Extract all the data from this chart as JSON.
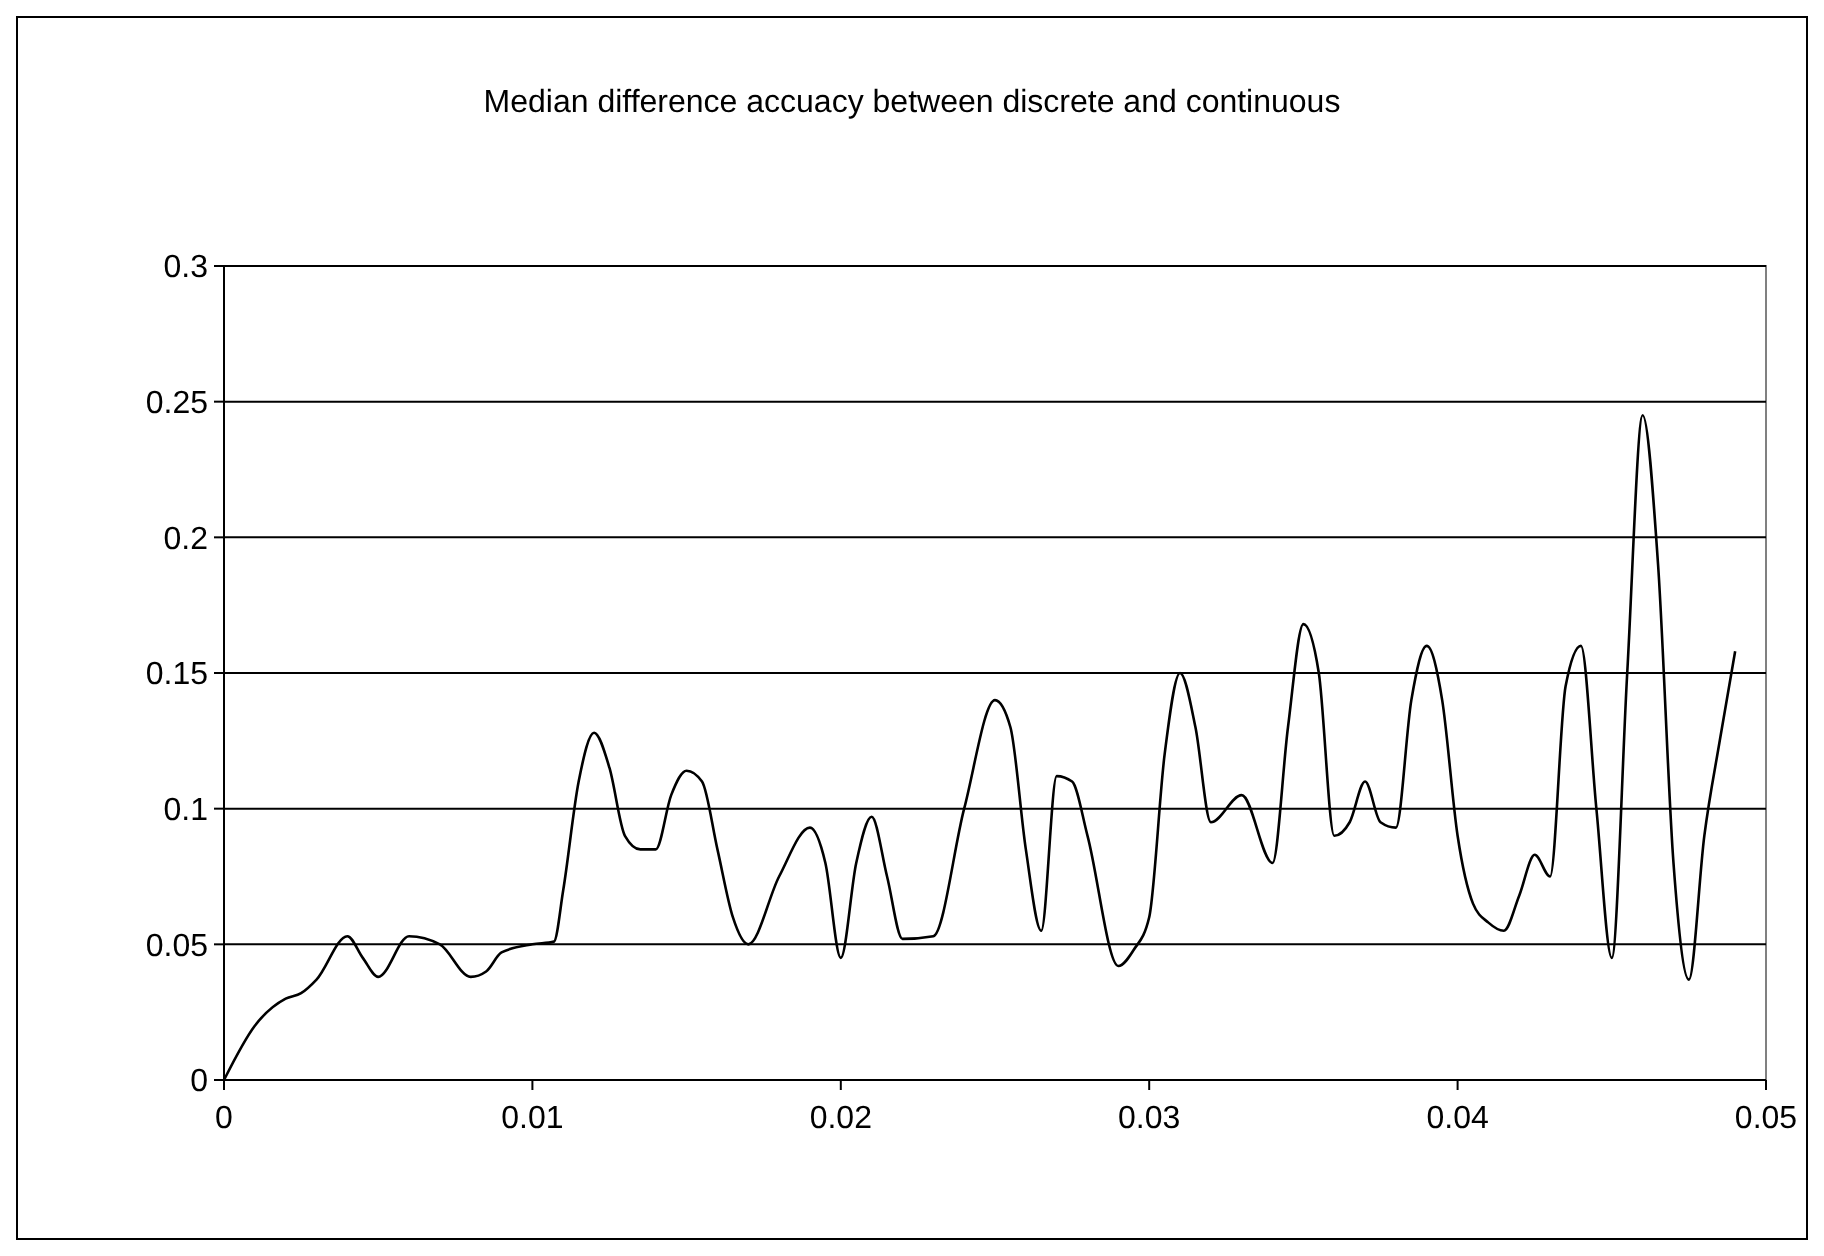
{
  "chart_data": {
    "type": "line",
    "title": "Median difference accuacy between discrete and continuous",
    "x": [
      0,
      0.001,
      0.002,
      0.0025,
      0.003,
      0.004,
      0.0045,
      0.005,
      0.006,
      0.007,
      0.008,
      0.0085,
      0.009,
      0.01,
      0.0107,
      0.011,
      0.0115,
      0.012,
      0.0125,
      0.013,
      0.0135,
      0.014,
      0.0145,
      0.015,
      0.0155,
      0.016,
      0.0165,
      0.017,
      0.018,
      0.019,
      0.0195,
      0.02,
      0.0205,
      0.021,
      0.0215,
      0.022,
      0.023,
      0.024,
      0.025,
      0.0255,
      0.026,
      0.0265,
      0.027,
      0.0275,
      0.028,
      0.029,
      0.0295,
      0.03,
      0.0305,
      0.031,
      0.0315,
      0.032,
      0.033,
      0.034,
      0.0345,
      0.035,
      0.0355,
      0.036,
      0.0365,
      0.037,
      0.0375,
      0.038,
      0.0385,
      0.039,
      0.0395,
      0.04,
      0.0405,
      0.041,
      0.0415,
      0.042,
      0.0425,
      0.043,
      0.0435,
      0.044,
      0.0445,
      0.045,
      0.0455,
      0.046,
      0.0465,
      0.047,
      0.0475,
      0.048,
      0.0485,
      0.049
    ],
    "series": [
      {
        "color": "#000000",
        "values": [
          0,
          0.02,
          0.03,
          0.032,
          0.037,
          0.053,
          0.045,
          0.038,
          0.053,
          0.05,
          0.038,
          0.04,
          0.047,
          0.05,
          0.051,
          0.07,
          0.11,
          0.128,
          0.115,
          0.09,
          0.085,
          0.085,
          0.105,
          0.114,
          0.11,
          0.085,
          0.06,
          0.05,
          0.075,
          0.093,
          0.08,
          0.045,
          0.08,
          0.097,
          0.075,
          0.052,
          0.053,
          0.1,
          0.14,
          0.13,
          0.085,
          0.055,
          0.112,
          0.11,
          0.09,
          0.042,
          0.048,
          0.06,
          0.12,
          0.15,
          0.13,
          0.095,
          0.105,
          0.08,
          0.13,
          0.168,
          0.15,
          0.09,
          0.095,
          0.11,
          0.095,
          0.093,
          0.14,
          0.16,
          0.14,
          0.09,
          0.065,
          0.058,
          0.055,
          0.068,
          0.083,
          0.075,
          0.145,
          0.16,
          0.1,
          0.045,
          0.15,
          0.245,
          0.19,
          0.08,
          0.037,
          0.09,
          0.125,
          0.158
        ]
      }
    ],
    "xlim": [
      0,
      0.05
    ],
    "xticks": [
      0,
      0.01,
      0.02,
      0.03,
      0.04,
      0.05
    ],
    "ylim": [
      0,
      0.3
    ],
    "yticks": [
      0,
      0.05,
      0.1,
      0.15,
      0.2,
      0.25,
      0.3
    ],
    "grid": "y",
    "marker": "none",
    "line_style": "solid"
  }
}
